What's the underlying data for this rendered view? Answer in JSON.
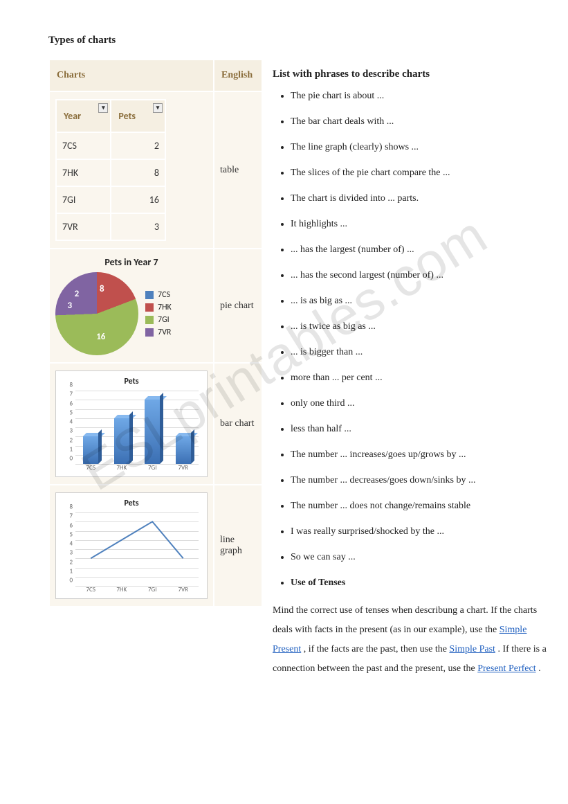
{
  "page_title": "Types of charts",
  "watermark_text": "ESLprintables.com",
  "table_headers": {
    "charts": "Charts",
    "english": "English"
  },
  "rows": [
    {
      "label": "table"
    },
    {
      "label": "pie chart"
    },
    {
      "label": "bar chart"
    },
    {
      "label": "line graph"
    }
  ],
  "excel_table": {
    "columns": [
      "Year",
      "Pets"
    ],
    "rows": [
      [
        "7CS",
        2
      ],
      [
        "7HK",
        8
      ],
      [
        "7GI",
        16
      ],
      [
        "7VR",
        3
      ]
    ],
    "header_bg": "#4f81bd",
    "header_color": "#ffffff",
    "border_color": "#a6a6a6"
  },
  "pie_chart": {
    "type": "pie",
    "title": "Pets in Year 7",
    "categories": [
      "7CS",
      "7HK",
      "7GI",
      "7VR"
    ],
    "values": [
      2,
      8,
      16,
      3
    ],
    "colors": [
      "#4f81bd",
      "#c0504d",
      "#9bbb59",
      "#8064a2"
    ],
    "label_fontsize": 13,
    "label_color": "#ffffff",
    "legend_marker": "square"
  },
  "bar_chart": {
    "type": "bar",
    "title": "Pets",
    "categories": [
      "7CS",
      "7HK",
      "7GI",
      "7VR"
    ],
    "values": [
      3,
      5,
      7,
      3
    ],
    "ylim": [
      0,
      8
    ],
    "ytick_step": 1,
    "bar_color": "#4f81bd",
    "grid_color": "#dddddd",
    "background_color": "#ffffff",
    "title_fontsize": 12,
    "label_fontsize": 9
  },
  "line_chart": {
    "type": "line",
    "title": "Pets",
    "categories": [
      "7CS",
      "7HK",
      "7GI",
      "7VR"
    ],
    "values": [
      3,
      5,
      7,
      3
    ],
    "ylim": [
      0,
      8
    ],
    "ytick_step": 1,
    "line_color": "#4f81bd",
    "line_width": 2,
    "grid_color": "#dddddd",
    "background_color": "#ffffff",
    "title_fontsize": 12,
    "label_fontsize": 9
  },
  "phrases": {
    "heading": "List with phrases to describe charts",
    "items": [
      "The pie chart is about ...",
      "The bar chart deals with ...",
      "The line graph (clearly) shows ...",
      "The slices of the pie chart compare the ...",
      "The chart is divided into ... parts.",
      "It highlights ...",
      "... has the largest (number of) ...",
      "... has the second largest (number of) ...",
      "... is as big as ...",
      "... is twice as big as ...",
      "... is bigger than ...",
      "more than ... per cent ...",
      "only one third ...",
      "less than half ...",
      "The number ... increases/goes up/grows by ...",
      "The number ... decreases/goes down/sinks by ...",
      "The number ... does not change/remains stable",
      "I was really surprised/shocked by the ...",
      "So we can say ..."
    ],
    "bold_item": "Use of Tenses"
  },
  "tenses_paragraph": {
    "pre1": "Mind the correct use of tenses when describung a chart. If the charts deals with facts in the present (as in our example), use the ",
    "link1": "Simple Present",
    "mid1": ", if the facts are the past, then use the ",
    "link2": "Simple Past",
    "mid2": ". If there is a connection between the past and the present, use the ",
    "link3": "Present Perfect",
    "post": "."
  },
  "colors": {
    "heading_color": "#8a6d3b",
    "table_bg": "#faf6ee",
    "header_bg": "#f5efe2",
    "link_color": "#1f5fbf"
  }
}
